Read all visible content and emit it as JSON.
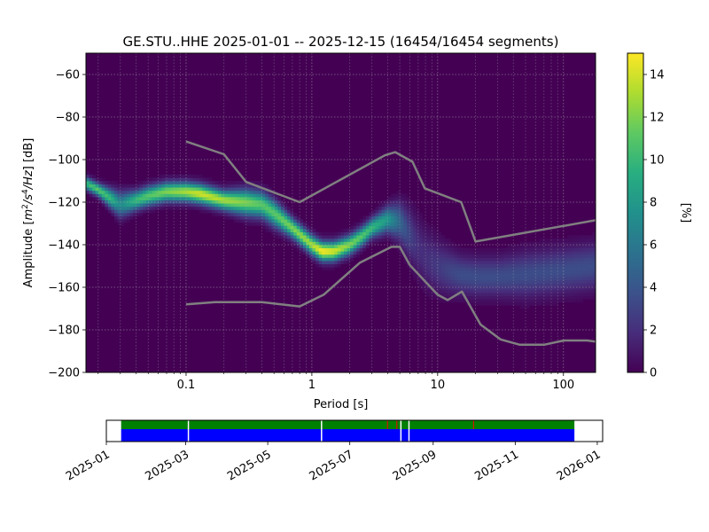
{
  "chart_data": [
    {
      "type": "heatmap",
      "title": "GE.STU..HHE   2025-01-01 -- 2025-12-15  (16454/16454 segments)",
      "xlabel": "Period [s]",
      "ylabel_parts": [
        "Amplitude [",
        "m",
        "2",
        "/s",
        "4",
        "/Hz",
        "] [dB]"
      ],
      "x_scale": "log",
      "xlim": [
        0.016,
        180
      ],
      "ylim": [
        -200,
        -50
      ],
      "x_ticks": [
        0.1,
        1,
        10,
        100
      ],
      "x_tick_labels": [
        "0.1",
        "1",
        "10",
        "100"
      ],
      "y_ticks": [
        -200,
        -180,
        -160,
        -140,
        -120,
        -100,
        -80,
        -60
      ],
      "y_tick_labels": [
        "−200",
        "−180",
        "−160",
        "−140",
        "−120",
        "−100",
        "−80",
        "−60"
      ],
      "grid": true,
      "colormap": "viridis",
      "colorbar": {
        "label": "[%]",
        "range": [
          0,
          15
        ],
        "ticks": [
          0,
          2,
          4,
          6,
          8,
          10,
          12,
          14
        ],
        "tick_labels": [
          "0",
          "2",
          "4",
          "6",
          "8",
          "10",
          "12",
          "14"
        ]
      },
      "density_ridge": {
        "period": [
          0.016,
          0.02,
          0.025,
          0.03,
          0.04,
          0.05,
          0.07,
          0.1,
          0.13,
          0.2,
          0.3,
          0.4,
          0.5,
          0.7,
          1.0,
          1.2,
          1.5,
          2.0,
          2.5,
          3.0,
          4.0,
          5.0,
          6.0,
          7.0,
          8.0,
          10,
          12,
          15,
          20,
          30,
          50,
          100,
          180
        ],
        "mode_db": [
          -111,
          -114,
          -118,
          -121,
          -119,
          -117,
          -115,
          -115,
          -116,
          -119,
          -120,
          -121,
          -125,
          -132,
          -140,
          -143,
          -143,
          -140,
          -136,
          -132,
          -128,
          -129,
          -135,
          -141,
          -146,
          -150,
          -152,
          -154,
          -155,
          -155,
          -154,
          -152,
          -150
        ],
        "spread_db": [
          2,
          2,
          3,
          4,
          3,
          3,
          3,
          3,
          3,
          3,
          4,
          4,
          4,
          3,
          3,
          3,
          3,
          3,
          3,
          3,
          4,
          6,
          8,
          9,
          9,
          8,
          7,
          6,
          6,
          6,
          7,
          7,
          7
        ],
        "peak_percent": [
          10,
          11,
          10,
          7,
          10,
          11,
          12,
          13,
          14,
          13,
          12,
          11,
          11,
          12,
          13,
          15,
          14,
          12,
          11,
          10,
          8,
          5,
          3,
          2,
          2,
          2.5,
          3,
          3.5,
          3.5,
          3.5,
          3.5,
          3.5,
          3.5
        ]
      },
      "series": [
        {
          "name": "noise-high",
          "x": [
            0.1,
            0.2,
            0.3,
            0.8,
            3.8,
            4.6,
            6.3,
            7.9,
            15.4,
            20,
            180
          ],
          "y": [
            -91.5,
            -97.5,
            -110.5,
            -120,
            -98,
            -96.5,
            -101,
            -113.5,
            -120,
            -138.5,
            -128.5
          ]
        },
        {
          "name": "noise-low",
          "x": [
            0.1,
            0.17,
            0.4,
            0.8,
            1.24,
            2.4,
            4.3,
            5.0,
            6.0,
            10,
            12,
            15.6,
            21.9,
            31.6,
            45,
            70,
            101,
            154,
            180
          ],
          "y": [
            -168,
            -167,
            -167,
            -169,
            -163.5,
            -148.5,
            -141,
            -141,
            -149.5,
            -163.5,
            -166,
            -162,
            -177.5,
            -184.5,
            -187,
            -187,
            -185,
            -185,
            -185.5
          ]
        }
      ]
    },
    {
      "type": "timeline",
      "xlim": [
        "2025-01-01",
        "2026-01-05"
      ],
      "x_ticks": [
        "2025-01-01",
        "2025-03-01",
        "2025-05-01",
        "2025-07-01",
        "2025-09-01",
        "2025-11-01",
        "2026-01-01"
      ],
      "x_tick_labels": [
        "2025-01",
        "2025-03",
        "2025-05",
        "2025-07",
        "2025-09",
        "2025-11",
        "2026-01"
      ],
      "data_span": [
        "2025-01-12",
        "2025-12-15"
      ],
      "colors": {
        "used": "#008000",
        "available": "#0000ff",
        "flag": "#ff0000",
        "gap": "#ffffff"
      },
      "gaps": [
        "2025-03-03",
        "2025-06-10",
        "2025-08-08",
        "2025-08-14"
      ],
      "flags": [
        "2025-07-29",
        "2025-08-05",
        "2025-10-01"
      ]
    }
  ]
}
